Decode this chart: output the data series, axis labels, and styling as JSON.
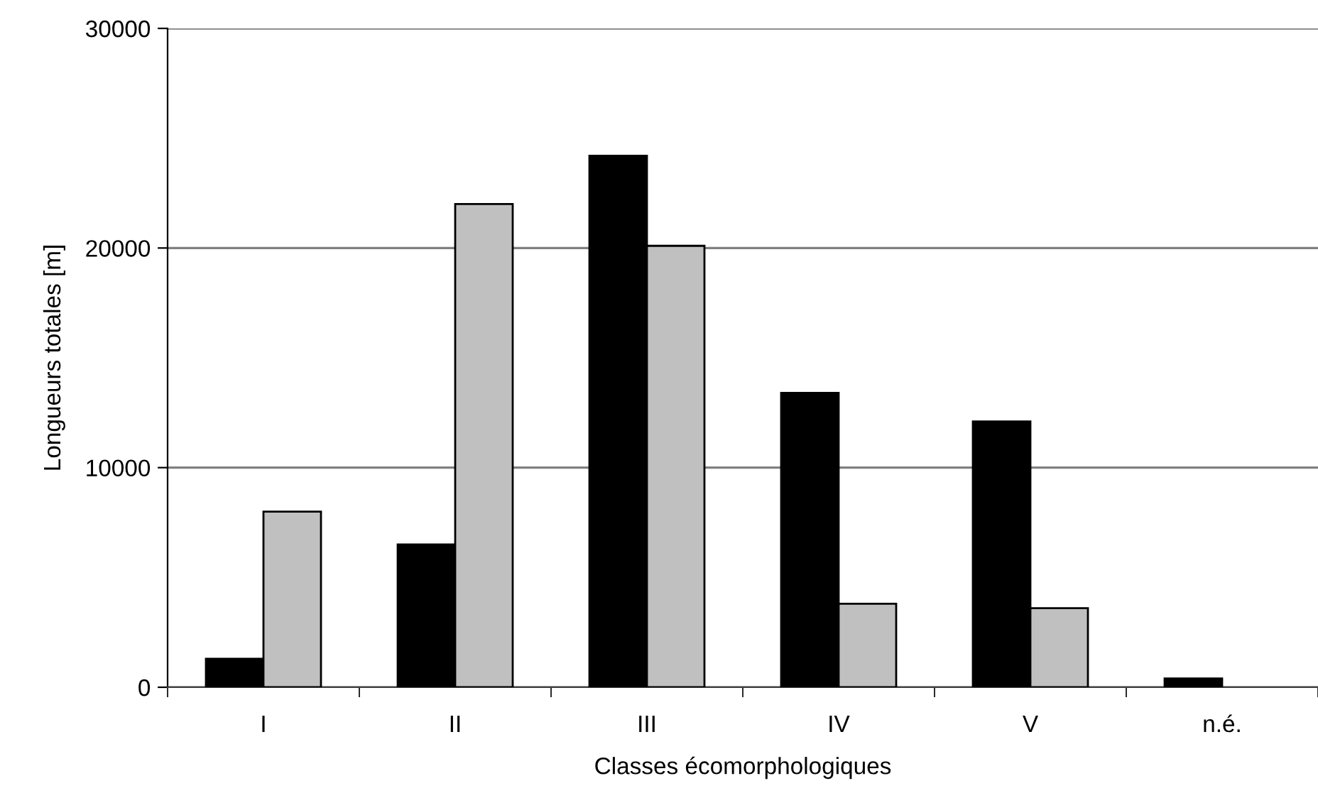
{
  "chart_data": {
    "type": "bar",
    "xlabel": "Classes écomorphologiques",
    "ylabel": "Longueurs totales [m]",
    "categories": [
      "I",
      "II",
      "III",
      "IV",
      "V",
      "n.é."
    ],
    "series": [
      {
        "color": "#000000",
        "values": [
          1300,
          6500,
          24200,
          13400,
          12100,
          400
        ]
      },
      {
        "color": "#c0c0c0",
        "values": [
          8000,
          22000,
          20100,
          3800,
          3600,
          null
        ]
      }
    ],
    "ylim": [
      0,
      30000
    ],
    "yticks": [
      0,
      10000,
      20000,
      30000
    ],
    "grid": "y",
    "legend": false
  }
}
